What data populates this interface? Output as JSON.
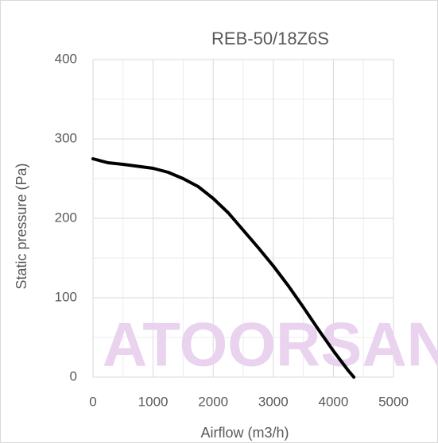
{
  "chart_data": {
    "type": "line",
    "title": "REB-50/18Z6S",
    "xlabel": "Airflow (m3/h)",
    "ylabel": "Static pressure (Pa)",
    "watermark": "ATOORSAN",
    "x": [
      0,
      250,
      500,
      1000,
      1250,
      1500,
      1750,
      2000,
      2250,
      2500,
      2750,
      3000,
      3250,
      3500,
      3750,
      4000,
      4250,
      4340
    ],
    "values": [
      275,
      270,
      268,
      263,
      258,
      250,
      240,
      225,
      207,
      185,
      163,
      140,
      115,
      88,
      60,
      33,
      8,
      0
    ],
    "color": "#000000",
    "xlim": [
      0,
      5000
    ],
    "xticks": [
      0,
      1000,
      2000,
      3000,
      4000,
      5000
    ],
    "xticks_minor": [
      500,
      1500,
      2500,
      3500,
      4500
    ],
    "ylim": [
      0,
      400
    ],
    "yticks": [
      0,
      100,
      200,
      300,
      400
    ],
    "yticks_minor": [
      50,
      150,
      250,
      350
    ],
    "grid": true
  }
}
